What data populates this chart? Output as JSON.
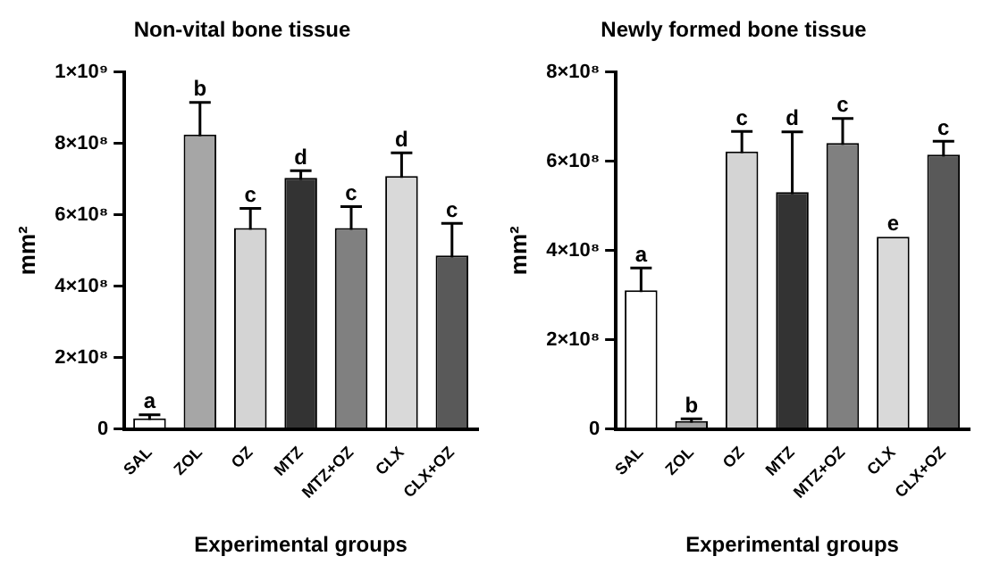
{
  "chart_data": [
    {
      "type": "bar",
      "title": "Non-vital bone tissue",
      "xlabel": "Experimental groups",
      "ylabel": "mm²",
      "categories": [
        "SAL",
        "ZOL",
        "OZ",
        "MTZ",
        "MTZ+OZ",
        "CLX",
        "CLX+OZ"
      ],
      "values": [
        30000000,
        825000000,
        563000000,
        704000000,
        563000000,
        709000000,
        486000000
      ],
      "errors": [
        10000000,
        90000000,
        55000000,
        20000000,
        60000000,
        65000000,
        90000000
      ],
      "colors": [
        "#ffffff",
        "#a6a6a6",
        "#d4d4d4",
        "#333333",
        "#808080",
        "#d9d9d9",
        "#595959"
      ],
      "ylim": [
        0,
        1000000000
      ],
      "yticks": [
        0,
        {
          "value": 200000000,
          "label": "2×10⁸"
        },
        {
          "value": 400000000,
          "label": "4×10⁸"
        },
        {
          "value": 600000000,
          "label": "6×10⁸"
        },
        {
          "value": 800000000,
          "label": "8×10⁸"
        },
        {
          "value": 1000000000,
          "label": "1×10⁹"
        }
      ],
      "grid": false,
      "legend": false,
      "annotations": [
        {
          "text": "a",
          "x": "SAL",
          "y": 40000000
        },
        {
          "text": "b",
          "x": "ZOL",
          "y": 915000000
        },
        {
          "text": "c",
          "x": "OZ",
          "y": 618000000
        },
        {
          "text": "d",
          "x": "MTZ",
          "y": 724000000
        },
        {
          "text": "c",
          "x": "MTZ+OZ",
          "y": 623000000
        },
        {
          "text": "d",
          "x": "CLX",
          "y": 774000000
        },
        {
          "text": "c",
          "x": "CLX+OZ",
          "y": 576000000
        }
      ]
    },
    {
      "type": "bar",
      "title": "Newly formed bone tissue",
      "xlabel": "Experimental groups",
      "ylabel": "mm²",
      "categories": [
        "SAL",
        "ZOL",
        "OZ",
        "MTZ",
        "MTZ+OZ",
        "CLX",
        "CLX+OZ"
      ],
      "values": [
        311000000,
        18000000,
        622000000,
        531000000,
        641000000,
        431000000,
        615000000
      ],
      "errors": [
        50000000,
        5000000,
        45000000,
        135000000,
        55000000,
        null,
        30000000
      ],
      "colors": [
        "#ffffff",
        "#a6a6a6",
        "#d4d4d4",
        "#333333",
        "#808080",
        "#d9d9d9",
        "#595959"
      ],
      "ylim": [
        0,
        800000000
      ],
      "yticks": [
        0,
        {
          "value": 200000000,
          "label": "2×10⁸"
        },
        {
          "value": 400000000,
          "label": "4×10⁸"
        },
        {
          "value": 600000000,
          "label": "6×10⁸"
        },
        {
          "value": 800000000,
          "label": "8×10⁸"
        }
      ],
      "grid": false,
      "legend": false,
      "annotations": [
        {
          "text": "a",
          "x": "SAL",
          "y": 361000000
        },
        {
          "text": "b",
          "x": "ZOL",
          "y": 23000000
        },
        {
          "text": "c",
          "x": "OZ",
          "y": 667000000
        },
        {
          "text": "d",
          "x": "MTZ",
          "y": 666000000
        },
        {
          "text": "c",
          "x": "MTZ+OZ",
          "y": 696000000
        },
        {
          "text": "e",
          "x": "CLX",
          "y": 431000000
        },
        {
          "text": "c",
          "x": "CLX+OZ",
          "y": 645000000
        }
      ]
    }
  ]
}
